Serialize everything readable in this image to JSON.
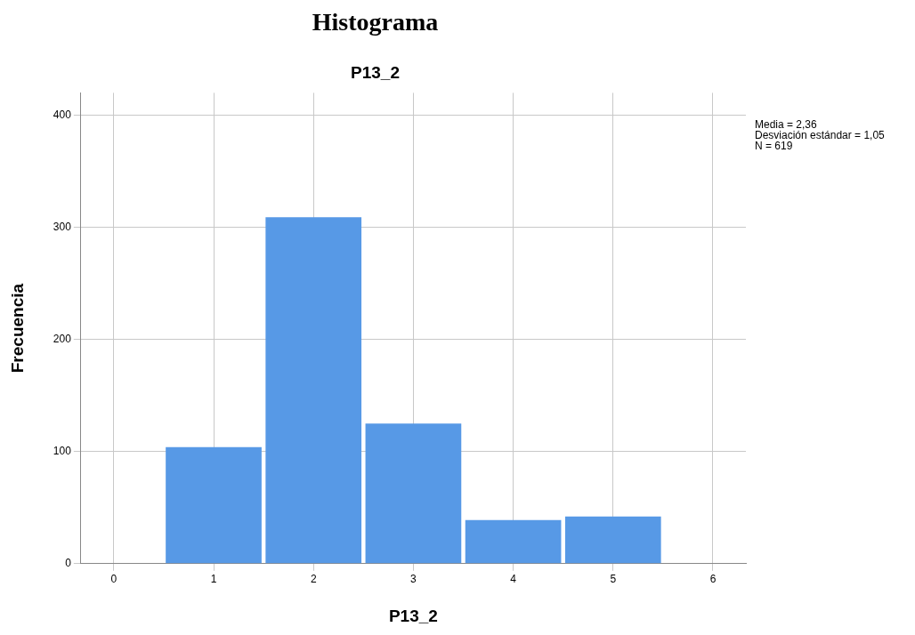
{
  "chart_data": {
    "type": "histogram",
    "title": "Histograma",
    "subtitle": "P13_2",
    "xlabel": "P13_2",
    "ylabel": "Frecuencia",
    "bins": [
      0.5,
      1.5,
      2.5,
      3.5,
      4.5,
      5.5
    ],
    "values": [
      104,
      309,
      125,
      39,
      42
    ],
    "color": "#5799e6",
    "xlim": [
      -0.33,
      6.33
    ],
    "xticks": [
      0,
      1,
      2,
      3,
      4,
      5,
      6
    ],
    "ylim": [
      0,
      420
    ],
    "yticks": [
      0,
      100,
      200,
      300,
      400
    ],
    "grid": true,
    "legend": false,
    "annotations": [
      "Media = 2,36",
      "Desviación estándar = 1,05",
      "N = 619"
    ]
  }
}
